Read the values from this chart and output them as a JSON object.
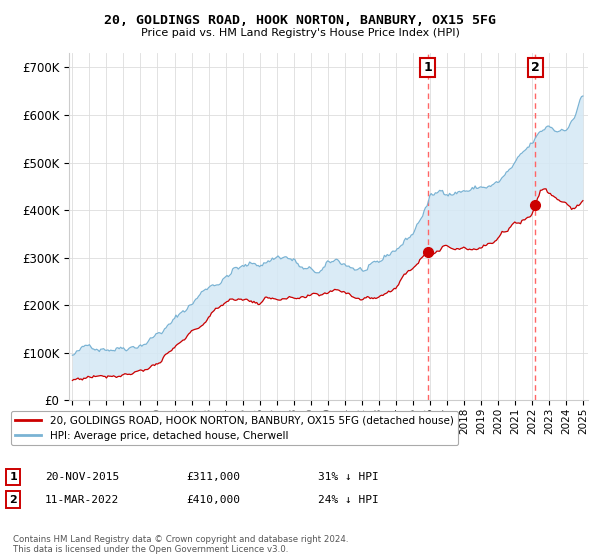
{
  "title": "20, GOLDINGS ROAD, HOOK NORTON, BANBURY, OX15 5FG",
  "subtitle": "Price paid vs. HM Land Registry's House Price Index (HPI)",
  "legend_line1": "20, GOLDINGS ROAD, HOOK NORTON, BANBURY, OX15 5FG (detached house)",
  "legend_line2": "HPI: Average price, detached house, Cherwell",
  "sale1_date": "20-NOV-2015",
  "sale1_price": 311000,
  "sale1_label": "31% ↓ HPI",
  "sale1_x": 2015.89,
  "sale2_date": "11-MAR-2022",
  "sale2_price": 410000,
  "sale2_label": "24% ↓ HPI",
  "sale2_x": 2022.19,
  "ylabel_ticks": [
    "£0",
    "£100K",
    "£200K",
    "£300K",
    "£400K",
    "£500K",
    "£600K",
    "£700K"
  ],
  "ytick_vals": [
    0,
    100000,
    200000,
    300000,
    400000,
    500000,
    600000,
    700000
  ],
  "ylim": [
    0,
    730000
  ],
  "xlim_start": 1994.8,
  "xlim_end": 2025.3,
  "hpi_color": "#7ab3d4",
  "price_color": "#cc0000",
  "shade_color": "#d4e8f5",
  "vline_color": "#ff6666",
  "footer": "Contains HM Land Registry data © Crown copyright and database right 2024.\nThis data is licensed under the Open Government Licence v3.0.",
  "bg_color": "#ffffff",
  "plot_bg_color": "#ffffff"
}
